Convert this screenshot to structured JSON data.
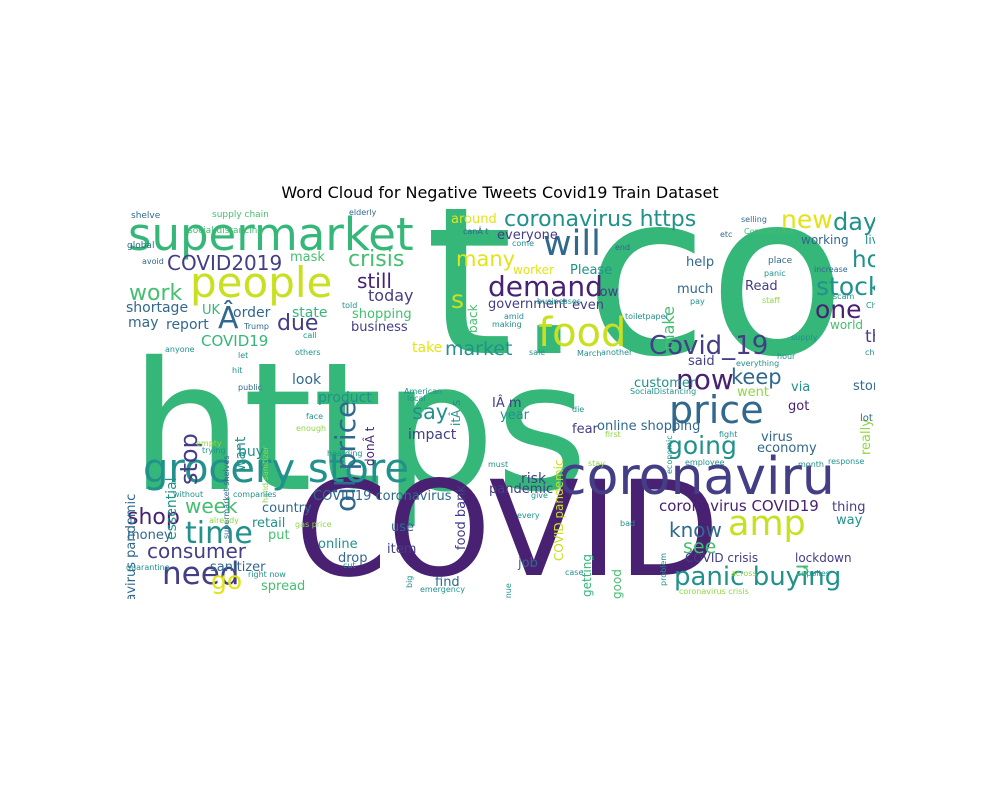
{
  "figure": {
    "title": "Word Cloud for Negative Tweets Covid19 Train Dataset"
  },
  "palette": {
    "dark_purple": "#482173",
    "indigo": "#433e85",
    "blue": "#31688e",
    "teal": "#21918c",
    "green": "#35b779",
    "bright_green": "#44bf70",
    "lime": "#8fd744",
    "yellow": "#c8e020",
    "gold": "#e2e418"
  },
  "words": {
    "t_co": "t.co",
    "https": "https",
    "COVID": "COVID",
    "coronaviru": "coronaviru",
    "supermarket": "supermarket",
    "people": "people",
    "grocery_store": "grocery store",
    "price": "price",
    "food": "food",
    "will": "will",
    "amp": "amp",
    "panic_buying": "panic buying",
    "demand": "demand",
    "oil_price": "oil price",
    "coronavirus_https": "coronavirus https",
    "Covid_19": "Covid_19",
    "now": "now",
    "stock": "stock",
    "time": "time",
    "need": "need",
    "new": "new",
    "day": "day",
    "home": "home",
    "one": "one",
    "crisis": "crisis",
    "COVID2019": "COVID2019",
    "work": "work",
    "A_circ": "Â",
    "s": "s",
    "many": "many",
    "still": "still",
    "today": "today",
    "due": "due",
    "market": "market",
    "keep": "keep",
    "going": "going",
    "consumer": "consumer",
    "shop": "shop",
    "week": "week",
    "go": "go",
    "toilet_paper": "toilet paper",
    "stop": "stop",
    "say": "say",
    "think": "think",
    "make": "make",
    "know": "know",
    "see": "see",
    "u": "u",
    "coronavirus_COVID19": "coronavirus COVID19",
    "COVID19": "COVID19",
    "coronavirus_pandemic": "coronavirus pandemic",
    "shortage": "shortage",
    "may": "may",
    "report": "report",
    "UK": "UK",
    "order": "order",
    "state": "state",
    "business": "business",
    "shopping": "shopping",
    "take": "take",
    "look": "look",
    "product": "product",
    "impact": "impact",
    "essential": "essential",
    "want": "want",
    "buy": "buy",
    "country": "country",
    "retail": "retail",
    "put": "put",
    "money": "money",
    "sanitizer": "sanitizer",
    "spread": "spread",
    "online": "online",
    "drop": "drop",
    "use": "use",
    "item": "item",
    "find": "find",
    "job": "job",
    "risk": "risk",
    "pandemic": "pandemic",
    "COVID19_coronavirus": "COVID19 coronavirus",
    "food_bank": "food bank",
    "don_t": "donÂ t",
    "it_s": "itÂ s",
    "I_m": "IÂ m",
    "year": "year",
    "fear": "fear",
    "online_shopping": "online shopping",
    "economy": "economy",
    "virus": "virus",
    "got": "got",
    "via": "via",
    "store": "store",
    "really": "really",
    "lot": "lot",
    "said": "said",
    "went": "went",
    "customer": "customer",
    "Read": "Read",
    "much": "much",
    "help": "help",
    "low": "low",
    "even": "even",
    "Please": "Please",
    "government": "government",
    "everyone": "everyone",
    "around": "around",
    "worker": "worker",
    "back": "back",
    "mask": "mask",
    "working": "working",
    "live": "live",
    "world": "world",
    "way": "way",
    "thing": "thing",
    "COVID_crisis": "COVID crisis",
    "lockdown": "lockdown",
    "good": "good",
    "getting": "getting",
    "COVID_pandemic": "COVID pandemic",
    "supply_chain": "supply chain",
    "shelve": "shelve",
    "elderly": "elderly",
    "social_distancing": "social distancing",
    "selling": "selling",
    "CoronaCrisis": "CoronaCrisis",
    "etc": "etc",
    "global": "global",
    "avoid": "avoid",
    "can_t": "canÂ t",
    "come": "come",
    "end": "end",
    "place": "place",
    "increase": "increase",
    "panic": "panic",
    "pay": "pay",
    "staff": "staff",
    "scam": "scam",
    "left": "left",
    "full": "full",
    "China": "China",
    "change": "change",
    "Trump": "Trump",
    "anyone": "anyone",
    "let": "let",
    "hit": "hit",
    "public": "public",
    "others": "others",
    "call": "call",
    "told": "told",
    "amid": "amid",
    "making": "making",
    "businesses": "businesses",
    "sale": "sale",
    "March": "March",
    "another": "another",
    "hour": "hour",
    "everything": "everything",
    "supply": "supply",
    "American": "American",
    "local": "local",
    "SocialDistancing": "SocialDistancing",
    "die": "die",
    "first": "first",
    "fight": "fight",
    "response": "response",
    "month": "month",
    "employee": "employee",
    "face": "face",
    "enough": "enough",
    "hoarding": "hoarding",
    "supermarket_shelves": "supermarket shelves",
    "hand_sanitizer": "hand sanitizer",
    "empty": "empty",
    "trying": "trying",
    "without": "without",
    "companies": "companies",
    "already": "already",
    "quarantine": "quarantine",
    "right_now": "right now",
    "cut": "cut",
    "gas_price": "gas price",
    "every": "every",
    "give": "give",
    "must": "must",
    "stay": "stay",
    "continue": "continue",
    "big": "big",
    "bad": "bad",
    "case": "case",
    "emergency": "emergency",
    "problem": "problem",
    "economic": "economic",
    "coronavirus_crisis": "coronavirus crisis",
    "across": "across",
    "supplies": "supplies",
    "toiletpaper": "toiletpaper"
  }
}
